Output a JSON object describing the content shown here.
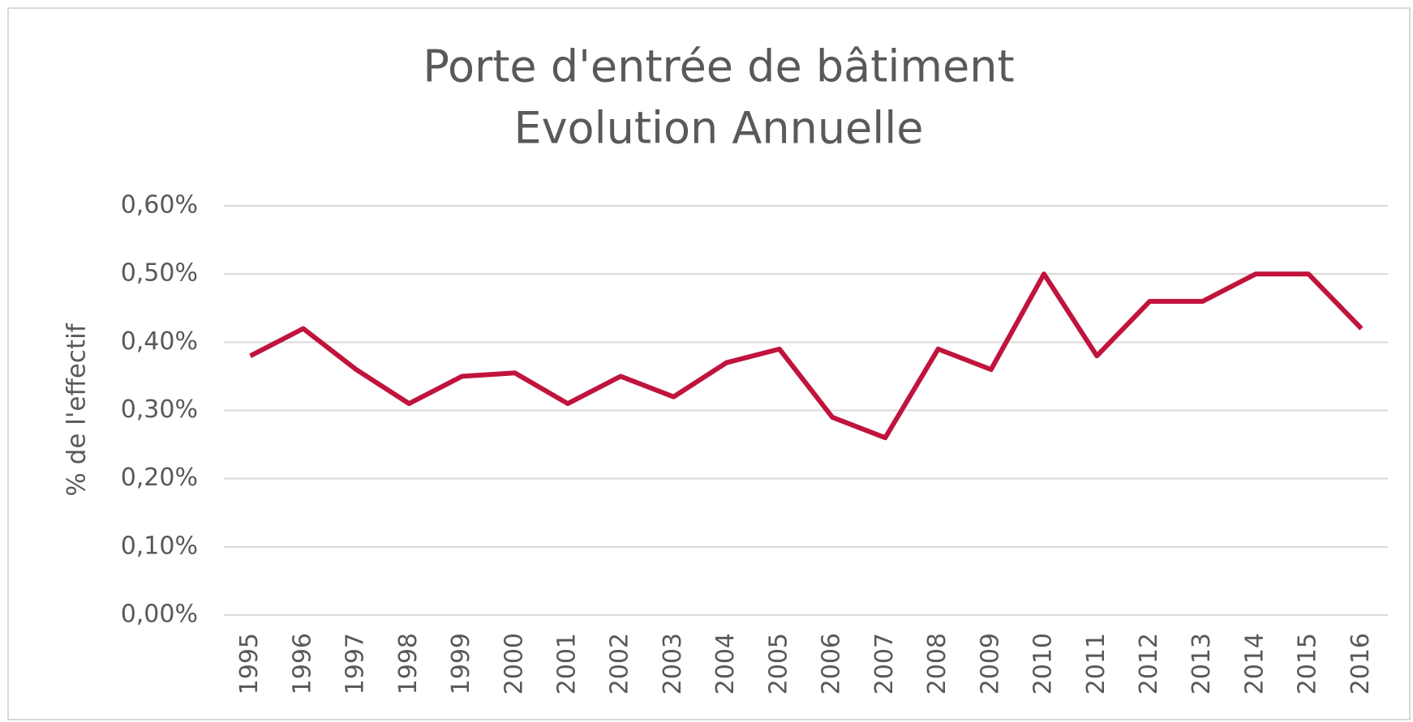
{
  "chart_data": {
    "type": "line",
    "title": "Porte d'entrée de bâtiment",
    "subtitle": "Evolution Annuelle",
    "y_label": "% de l'effectif",
    "categories": [
      "1995",
      "1996",
      "1997",
      "1998",
      "1999",
      "2000",
      "2001",
      "2002",
      "2003",
      "2004",
      "2005",
      "2006",
      "2007",
      "2008",
      "2009",
      "2010",
      "2011",
      "2012",
      "2013",
      "2014",
      "2015",
      "2016"
    ],
    "series": [
      {
        "color": "#c0143c",
        "values": [
          0.38,
          0.42,
          0.36,
          0.31,
          0.35,
          0.355,
          0.31,
          0.35,
          0.32,
          0.37,
          0.39,
          0.29,
          0.26,
          0.39,
          0.36,
          0.5,
          0.38,
          0.46,
          0.46,
          0.5,
          0.5,
          0.42
        ]
      }
    ],
    "ylim": [
      0,
      0.6
    ],
    "yticks": [
      {
        "value": 0,
        "label": "0,00%"
      },
      {
        "value": 0.1,
        "label": "0,10%"
      },
      {
        "value": 0.2,
        "label": "0,20%"
      },
      {
        "value": 0.3,
        "label": "0,30%"
      },
      {
        "value": 0.4,
        "label": "0,40%"
      },
      {
        "value": 0.5,
        "label": "0,50%"
      },
      {
        "value": 0.6,
        "label": "0,60%"
      }
    ],
    "grid": true
  }
}
